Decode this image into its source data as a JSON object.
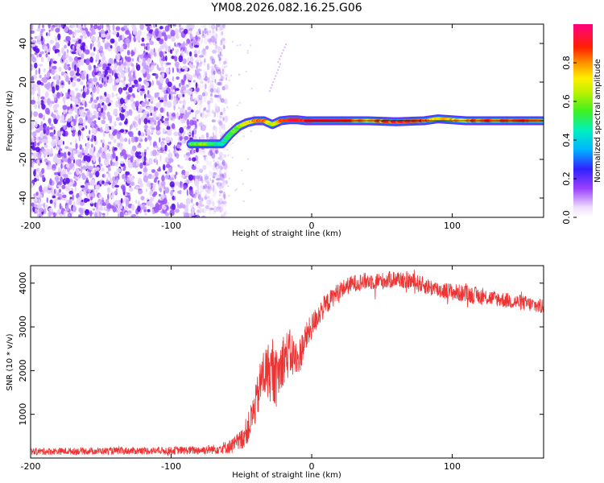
{
  "title": "YM08.2026.082.16.25.G06",
  "chart_data": [
    {
      "type": "heatmap",
      "title": "YM08.2026.082.16.25.G06",
      "xlabel": "Height of straight line (km)",
      "ylabel": "Frequency (Hz)",
      "xlim": [
        -200,
        165
      ],
      "ylim": [
        -50,
        50
      ],
      "x_ticks": [
        -200,
        -100,
        0,
        100
      ],
      "y_ticks": [
        -40,
        -20,
        0,
        20,
        40
      ],
      "grid": false,
      "noise_region_x": [
        -200,
        -64
      ],
      "signal_track": {
        "x": [
          -86,
          -78,
          -70,
          -64,
          -58,
          -52,
          -46,
          -40,
          -34,
          -28,
          -22,
          -16,
          -10,
          -4,
          0,
          20,
          40,
          60,
          80,
          90,
          110,
          130,
          165
        ],
        "freq": [
          -12,
          -12,
          -12,
          -12,
          -7,
          -3,
          -1,
          0,
          0,
          -2,
          0,
          0.5,
          0.5,
          0,
          0,
          0,
          0,
          -0.5,
          0,
          1,
          0,
          0,
          0
        ],
        "amplitude": [
          0.55,
          0.6,
          0.5,
          0.45,
          0.5,
          0.6,
          0.7,
          0.8,
          0.85,
          0.6,
          0.8,
          0.9,
          0.95,
          0.9,
          1.0,
          0.95,
          0.75,
          0.9,
          0.85,
          0.7,
          0.8,
          0.85,
          0.8
        ]
      },
      "colorbar": {
        "label": "Normalized spectral amplitude",
        "range": [
          0,
          1
        ],
        "ticks": [
          0.0,
          0.2,
          0.4,
          0.6,
          0.8
        ],
        "tick_labels": [
          "0.0",
          "0.2",
          "0.4",
          "0.6",
          "0.8"
        ]
      }
    },
    {
      "type": "line",
      "xlabel": "Height of straight line (km)",
      "ylabel": "SNR (10 * v/v)",
      "xlim": [
        -200,
        165
      ],
      "ylim": [
        0,
        4400
      ],
      "x_ticks": [
        -200,
        -100,
        0,
        100
      ],
      "y_ticks": [
        1000,
        2000,
        3000,
        4000
      ],
      "grid": false,
      "series": [
        {
          "name": "SNR",
          "color": "#ee3333",
          "x": [
            -200,
            -150,
            -100,
            -80,
            -70,
            -60,
            -55,
            -50,
            -45,
            -40,
            -35,
            -30,
            -25,
            -20,
            -15,
            -10,
            -5,
            0,
            5,
            10,
            20,
            30,
            40,
            50,
            60,
            70,
            80,
            90,
            100,
            110,
            120,
            130,
            140,
            150,
            165
          ],
          "values": [
            150,
            160,
            170,
            180,
            200,
            250,
            300,
            420,
            700,
            1200,
            1900,
            2000,
            1800,
            2300,
            2400,
            2200,
            2700,
            3000,
            3300,
            3500,
            3850,
            4000,
            4050,
            4050,
            4100,
            4050,
            3950,
            3850,
            3800,
            3750,
            3700,
            3650,
            3600,
            3550,
            3450
          ],
          "noise_amplitude": [
            80,
            80,
            90,
            100,
            110,
            150,
            200,
            250,
            350,
            450,
            600,
            700,
            650,
            600,
            550,
            450,
            350,
            300,
            280,
            250,
            200,
            200,
            200,
            200,
            200,
            200,
            200,
            200,
            200,
            200,
            200,
            180,
            180,
            180,
            180
          ]
        }
      ]
    }
  ]
}
